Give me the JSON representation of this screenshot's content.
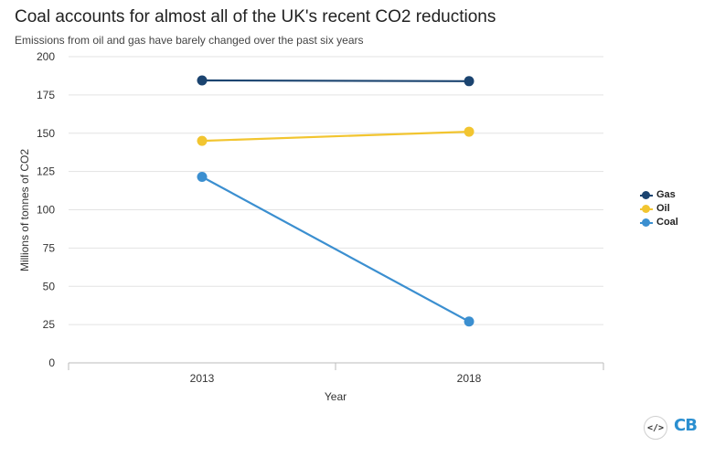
{
  "header": {
    "title": "Coal accounts for almost all of the UK's recent CO2 reductions",
    "subtitle": "Emissions from oil and gas have barely changed over the past six years"
  },
  "footer": {
    "embed_glyph": "</>",
    "embed_icon": "code-embed-icon",
    "logo_text": "CB"
  },
  "colors": {
    "gas": "#1b4470",
    "oil": "#f2c530",
    "coal": "#3b8fd0",
    "grid": "#e3e3e3",
    "axis": "#bbbbbb"
  },
  "chart_data": {
    "type": "line",
    "title": "Coal accounts for almost all of the UK's recent CO2 reductions",
    "subtitle": "Emissions from oil and gas have barely changed over the past six years",
    "x": [
      "2013",
      "2018"
    ],
    "xlabel": "Year",
    "ylabel": "Millions of tonnes of CO2",
    "ylim": [
      0,
      200
    ],
    "yticks": [
      0,
      25,
      50,
      75,
      100,
      125,
      150,
      175,
      200
    ],
    "grid": true,
    "legend_position": "right",
    "series": [
      {
        "name": "Gas",
        "values": [
          184.5,
          184
        ],
        "color": "#1b4470"
      },
      {
        "name": "Oil",
        "values": [
          145,
          151
        ],
        "color": "#f2c530"
      },
      {
        "name": "Coal",
        "values": [
          121.5,
          27
        ],
        "color": "#3b8fd0"
      }
    ]
  }
}
